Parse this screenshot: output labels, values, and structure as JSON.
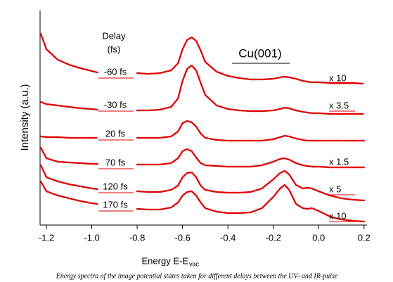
{
  "chart_data": {
    "type": "line",
    "ylabel": "Intensity (a.u.)",
    "xlabel": "Energy E-E",
    "xlabel_sub": "vac",
    "legend_title": "Delay",
    "legend_subtitle": "(fs)",
    "sample": "Cu(001)",
    "caption": "Energy spectra of the image potential states  taken for different delays between the UV- and IR-pulse",
    "color": "#e00000",
    "xlim": [
      -1.228,
      0.213
    ],
    "ylim": [
      0,
      305
    ],
    "xticks": [
      -1.2,
      {
        "value": -1.0,
        "label": "-1.0"
      },
      -0.8,
      -0.6,
      -0.4,
      -0.2,
      {
        "value": 0.0,
        "label": "0.0"
      },
      0.2
    ],
    "x": [
      -1.225,
      -1.2,
      -1.15,
      -1.1,
      -1.05,
      -1.0,
      -0.975,
      -0.95,
      -0.9,
      -0.85,
      -0.8,
      -0.75,
      -0.7,
      -0.65,
      -0.62,
      -0.6,
      -0.58,
      -0.56,
      -0.54,
      -0.52,
      -0.5,
      -0.45,
      -0.4,
      -0.35,
      -0.3,
      -0.25,
      -0.2,
      -0.17,
      -0.15,
      -0.13,
      -0.1,
      -0.07,
      -0.05,
      -0.03,
      0.0,
      0.05,
      0.1,
      0.15,
      0.2
    ],
    "series": [
      {
        "name": "-60 fs",
        "factor": "x 10",
        "values": [
          272,
          250,
          235,
          228,
          223,
          219,
          217,
          null,
          null,
          null,
          216,
          215,
          216,
          220,
          230,
          250,
          263,
          267,
          262,
          248,
          232,
          218,
          212,
          209,
          207,
          207,
          208,
          210,
          211,
          210,
          208,
          205,
          204,
          203,
          203,
          202,
          202,
          202,
          201
        ]
      },
      {
        "name": "-30 fs",
        "factor": "x 3.5",
        "values": [
          175,
          172,
          170,
          168,
          166,
          165,
          164,
          null,
          null,
          null,
          163,
          163,
          164,
          168,
          180,
          205,
          222,
          227,
          220,
          202,
          185,
          170,
          165,
          163,
          162,
          162,
          163,
          165,
          167,
          166,
          163,
          161,
          160,
          159,
          159,
          158,
          158,
          158,
          158
        ]
      },
      {
        "name": "20 fs",
        "values": [
          126,
          125,
          125,
          124,
          124,
          124,
          124,
          null,
          null,
          null,
          124,
          124,
          124,
          126,
          133,
          145,
          148,
          146,
          140,
          130,
          124,
          121,
          120,
          120,
          120,
          120,
          122,
          125,
          127,
          126,
          123,
          121,
          120,
          120,
          120,
          120,
          120,
          120,
          120
        ]
      },
      {
        "name": "70 fs",
        "factor": "x 1.5",
        "values": [
          110,
          95,
          90,
          89,
          88,
          87,
          87,
          null,
          null,
          null,
          86,
          86,
          86,
          88,
          95,
          105,
          108,
          105,
          96,
          88,
          85,
          84,
          83,
          83,
          83,
          85,
          90,
          94,
          95,
          93,
          88,
          85,
          84,
          83,
          83,
          82,
          82,
          82,
          82
        ]
      },
      {
        "name": "120 fs",
        "factor": "x 5",
        "values": [
          85,
          68,
          62,
          58,
          55,
          52,
          51,
          null,
          null,
          null,
          48,
          47,
          47,
          50,
          56,
          68,
          74,
          75,
          68,
          56,
          50,
          47,
          46,
          46,
          47,
          52,
          65,
          74,
          77,
          72,
          57,
          52,
          53,
          52,
          48,
          42,
          38,
          36,
          35
        ]
      },
      {
        "name": "170 fs",
        "factor": "x 10",
        "values": [
          62,
          48,
          42,
          38,
          34,
          31,
          30,
          null,
          null,
          null,
          23,
          22,
          22,
          25,
          32,
          42,
          47,
          48,
          42,
          32,
          24,
          19,
          17,
          17,
          18,
          24,
          40,
          52,
          57,
          50,
          30,
          24,
          23,
          24,
          20,
          12,
          8,
          6,
          5
        ]
      }
    ]
  }
}
